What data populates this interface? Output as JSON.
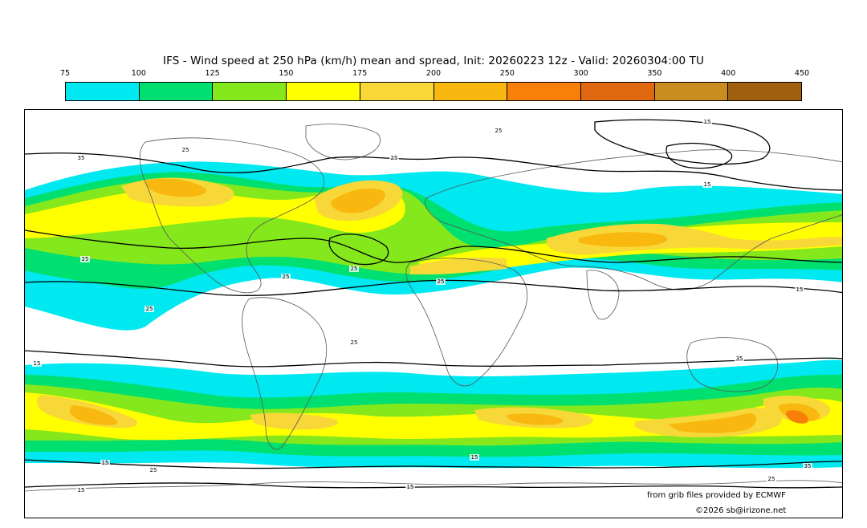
{
  "title": "IFS - Wind speed at 250 hPa (km/h) mean and spread, Init: 20260223 12z - Valid: 20260304:00 TU",
  "legend": {
    "ticks": [
      "75",
      "100",
      "125",
      "150",
      "175",
      "200",
      "250",
      "300",
      "350",
      "400",
      "450"
    ],
    "colors": [
      "#00e8f0",
      "#00e070",
      "#84e81c",
      "#ffff00",
      "#f8d838",
      "#f8b810",
      "#f88008",
      "#e06810",
      "#c88c20",
      "#a06010"
    ]
  },
  "contour_labels": [
    "25",
    "35",
    "25",
    "15",
    "25",
    "25",
    "25",
    "15",
    "25",
    "15",
    "25",
    "15",
    "35",
    "25",
    "25",
    "15",
    "15",
    "25",
    "35",
    "25",
    "15",
    "15"
  ],
  "credits": {
    "provider": "from grib files provided by ECMWF",
    "copyright": "©2026 sb@irizone.net"
  }
}
